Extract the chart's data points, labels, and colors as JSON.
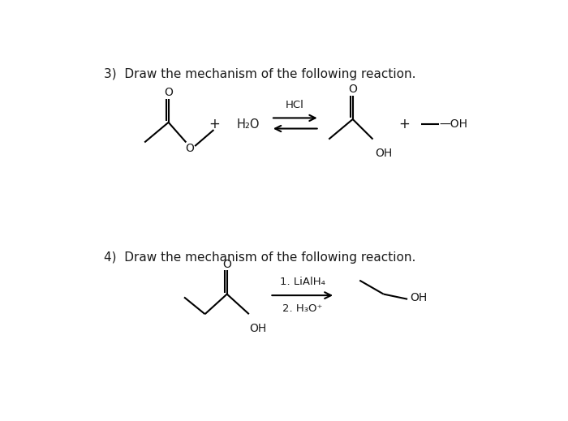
{
  "background_color": "#ffffff",
  "title3": "3)  Draw the mechanism of the following reaction.",
  "title4": "4)  Draw the mechanism of the following reaction.",
  "title_fontsize": 11,
  "text_color": "#1a1a1a",
  "rxn1": {
    "hcl_label": "HCl",
    "h2o_label": "H₂O",
    "oh_product": "OH"
  },
  "rxn2": {
    "step1_label": "1. LiAlH₄",
    "step2_label": "2. H₃O⁺"
  }
}
